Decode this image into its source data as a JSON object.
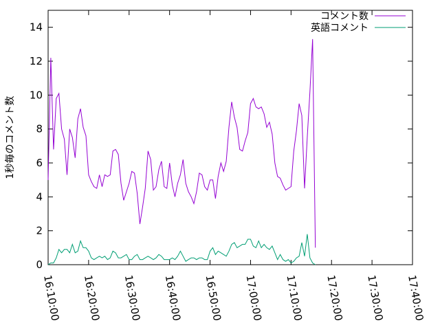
{
  "chart_data": {
    "type": "line",
    "title": "",
    "xlabel": "",
    "ylabel": "1秒毎のコメント数",
    "xlim": [
      "16:10:00",
      "17:40:00"
    ],
    "ylim": [
      0,
      15
    ],
    "x_ticks": [
      "16:10:00",
      "16:20:00",
      "16:30:00",
      "16:40:00",
      "16:50:00",
      "17:00:00",
      "17:10:00",
      "17:20:00",
      "17:30:00",
      "17:40:00"
    ],
    "y_ticks": [
      "0",
      "2",
      "4",
      "6",
      "8",
      "10",
      "12",
      "14"
    ],
    "grid": false,
    "legend_position": "top-right",
    "series": [
      {
        "name": "コメント数",
        "color": "#9400d3",
        "points": [
          [
            "16:10:00",
            5.0
          ],
          [
            "16:10:40",
            12.2
          ],
          [
            "16:11:20",
            6.8
          ],
          [
            "16:12:00",
            9.8
          ],
          [
            "16:12:40",
            10.1
          ],
          [
            "16:13:20",
            8.0
          ],
          [
            "16:14:00",
            7.4
          ],
          [
            "16:14:40",
            5.3
          ],
          [
            "16:15:20",
            8.0
          ],
          [
            "16:16:00",
            7.5
          ],
          [
            "16:16:40",
            6.3
          ],
          [
            "16:17:20",
            8.6
          ],
          [
            "16:18:00",
            9.2
          ],
          [
            "16:18:40",
            8.1
          ],
          [
            "16:19:20",
            7.6
          ],
          [
            "16:20:00",
            5.3
          ],
          [
            "16:20:40",
            4.9
          ],
          [
            "16:21:20",
            4.6
          ],
          [
            "16:22:00",
            4.5
          ],
          [
            "16:22:40",
            5.3
          ],
          [
            "16:23:20",
            4.6
          ],
          [
            "16:24:00",
            5.3
          ],
          [
            "16:24:40",
            5.2
          ],
          [
            "16:25:20",
            5.3
          ],
          [
            "16:26:00",
            6.7
          ],
          [
            "16:26:40",
            6.8
          ],
          [
            "16:27:20",
            6.5
          ],
          [
            "16:28:00",
            4.8
          ],
          [
            "16:28:40",
            3.8
          ],
          [
            "16:29:20",
            4.3
          ],
          [
            "16:30:00",
            4.8
          ],
          [
            "16:30:40",
            5.5
          ],
          [
            "16:31:20",
            5.4
          ],
          [
            "16:32:00",
            4.2
          ],
          [
            "16:32:40",
            2.4
          ],
          [
            "16:33:20",
            3.4
          ],
          [
            "16:34:00",
            4.5
          ],
          [
            "16:34:40",
            6.7
          ],
          [
            "16:35:20",
            6.2
          ],
          [
            "16:36:00",
            4.4
          ],
          [
            "16:36:40",
            4.6
          ],
          [
            "16:37:20",
            5.6
          ],
          [
            "16:38:00",
            6.1
          ],
          [
            "16:38:40",
            4.6
          ],
          [
            "16:39:20",
            4.5
          ],
          [
            "16:40:00",
            6.0
          ],
          [
            "16:40:40",
            4.7
          ],
          [
            "16:41:20",
            4.0
          ],
          [
            "16:42:00",
            4.8
          ],
          [
            "16:42:40",
            5.3
          ],
          [
            "16:43:20",
            6.2
          ],
          [
            "16:44:00",
            4.8
          ],
          [
            "16:44:40",
            4.3
          ],
          [
            "16:45:20",
            4.0
          ],
          [
            "16:46:00",
            3.6
          ],
          [
            "16:46:40",
            4.3
          ],
          [
            "16:47:20",
            5.4
          ],
          [
            "16:48:00",
            5.3
          ],
          [
            "16:48:40",
            4.6
          ],
          [
            "16:49:20",
            4.4
          ],
          [
            "16:50:00",
            5.0
          ],
          [
            "16:50:40",
            5.0
          ],
          [
            "16:51:20",
            3.9
          ],
          [
            "16:52:00",
            5.2
          ],
          [
            "16:52:40",
            6.0
          ],
          [
            "16:53:20",
            5.5
          ],
          [
            "16:54:00",
            6.1
          ],
          [
            "16:54:40",
            8.1
          ],
          [
            "16:55:20",
            9.6
          ],
          [
            "16:56:00",
            8.7
          ],
          [
            "16:56:40",
            8.1
          ],
          [
            "16:57:20",
            6.8
          ],
          [
            "16:58:00",
            6.7
          ],
          [
            "16:58:40",
            7.3
          ],
          [
            "16:59:20",
            7.8
          ],
          [
            "17:00:00",
            9.5
          ],
          [
            "17:00:40",
            9.8
          ],
          [
            "17:01:20",
            9.3
          ],
          [
            "17:02:00",
            9.2
          ],
          [
            "17:02:40",
            9.3
          ],
          [
            "17:03:20",
            8.9
          ],
          [
            "17:04:00",
            8.1
          ],
          [
            "17:04:40",
            8.4
          ],
          [
            "17:05:20",
            7.7
          ],
          [
            "17:06:00",
            6.0
          ],
          [
            "17:06:40",
            5.2
          ],
          [
            "17:07:20",
            5.1
          ],
          [
            "17:08:00",
            4.7
          ],
          [
            "17:08:40",
            4.4
          ],
          [
            "17:09:20",
            4.5
          ],
          [
            "17:10:00",
            4.6
          ],
          [
            "17:10:40",
            6.7
          ],
          [
            "17:11:20",
            7.9
          ],
          [
            "17:12:00",
            9.5
          ],
          [
            "17:12:40",
            8.8
          ],
          [
            "17:13:20",
            4.5
          ],
          [
            "17:14:00",
            7.5
          ],
          [
            "17:14:40",
            10.2
          ],
          [
            "17:15:20",
            13.3
          ],
          [
            "17:16:00",
            1.0
          ]
        ]
      },
      {
        "name": "英語コメント",
        "color": "#009e73",
        "points": [
          [
            "16:10:00",
            0.0
          ],
          [
            "16:10:40",
            0.1
          ],
          [
            "16:11:20",
            0.1
          ],
          [
            "16:12:00",
            0.4
          ],
          [
            "16:12:40",
            0.9
          ],
          [
            "16:13:20",
            0.7
          ],
          [
            "16:14:00",
            0.9
          ],
          [
            "16:14:40",
            0.9
          ],
          [
            "16:15:20",
            0.7
          ],
          [
            "16:16:00",
            1.2
          ],
          [
            "16:16:40",
            0.7
          ],
          [
            "16:17:20",
            0.8
          ],
          [
            "16:18:00",
            1.4
          ],
          [
            "16:18:40",
            1.0
          ],
          [
            "16:19:20",
            1.0
          ],
          [
            "16:20:00",
            0.8
          ],
          [
            "16:20:40",
            0.4
          ],
          [
            "16:21:20",
            0.3
          ],
          [
            "16:22:00",
            0.4
          ],
          [
            "16:22:40",
            0.5
          ],
          [
            "16:23:20",
            0.4
          ],
          [
            "16:24:00",
            0.5
          ],
          [
            "16:24:40",
            0.3
          ],
          [
            "16:25:20",
            0.4
          ],
          [
            "16:26:00",
            0.8
          ],
          [
            "16:26:40",
            0.7
          ],
          [
            "16:27:20",
            0.4
          ],
          [
            "16:28:00",
            0.4
          ],
          [
            "16:28:40",
            0.5
          ],
          [
            "16:29:20",
            0.6
          ],
          [
            "16:30:00",
            0.3
          ],
          [
            "16:30:40",
            0.3
          ],
          [
            "16:31:20",
            0.5
          ],
          [
            "16:32:00",
            0.6
          ],
          [
            "16:32:40",
            0.3
          ],
          [
            "16:33:20",
            0.3
          ],
          [
            "16:34:00",
            0.4
          ],
          [
            "16:34:40",
            0.5
          ],
          [
            "16:35:20",
            0.4
          ],
          [
            "16:36:00",
            0.3
          ],
          [
            "16:36:40",
            0.4
          ],
          [
            "16:37:20",
            0.6
          ],
          [
            "16:38:00",
            0.5
          ],
          [
            "16:38:40",
            0.3
          ],
          [
            "16:39:20",
            0.3
          ],
          [
            "16:40:00",
            0.3
          ],
          [
            "16:40:40",
            0.4
          ],
          [
            "16:41:20",
            0.3
          ],
          [
            "16:42:00",
            0.5
          ],
          [
            "16:42:40",
            0.8
          ],
          [
            "16:43:20",
            0.5
          ],
          [
            "16:44:00",
            0.2
          ],
          [
            "16:44:40",
            0.3
          ],
          [
            "16:45:20",
            0.4
          ],
          [
            "16:46:00",
            0.4
          ],
          [
            "16:46:40",
            0.3
          ],
          [
            "16:47:20",
            0.4
          ],
          [
            "16:48:00",
            0.4
          ],
          [
            "16:48:40",
            0.3
          ],
          [
            "16:49:20",
            0.3
          ],
          [
            "16:50:00",
            0.8
          ],
          [
            "16:50:40",
            1.0
          ],
          [
            "16:51:20",
            0.6
          ],
          [
            "16:52:00",
            0.8
          ],
          [
            "16:52:40",
            0.7
          ],
          [
            "16:53:20",
            0.6
          ],
          [
            "16:54:00",
            0.5
          ],
          [
            "16:54:40",
            0.8
          ],
          [
            "16:55:20",
            1.2
          ],
          [
            "16:56:00",
            1.3
          ],
          [
            "16:56:40",
            1.0
          ],
          [
            "16:57:20",
            1.1
          ],
          [
            "16:58:00",
            1.2
          ],
          [
            "16:58:40",
            1.2
          ],
          [
            "16:59:20",
            1.5
          ],
          [
            "17:00:00",
            1.5
          ],
          [
            "17:00:40",
            1.1
          ],
          [
            "17:01:20",
            1.0
          ],
          [
            "17:02:00",
            1.4
          ],
          [
            "17:02:40",
            1.0
          ],
          [
            "17:03:20",
            1.2
          ],
          [
            "17:04:00",
            1.0
          ],
          [
            "17:04:40",
            0.9
          ],
          [
            "17:05:20",
            1.1
          ],
          [
            "17:06:00",
            0.7
          ],
          [
            "17:06:40",
            0.3
          ],
          [
            "17:07:20",
            0.6
          ],
          [
            "17:08:00",
            0.3
          ],
          [
            "17:08:40",
            0.2
          ],
          [
            "17:09:20",
            0.3
          ],
          [
            "17:10:00",
            0.1
          ],
          [
            "17:10:40",
            0.2
          ],
          [
            "17:11:20",
            0.4
          ],
          [
            "17:12:00",
            0.5
          ],
          [
            "17:12:40",
            1.3
          ],
          [
            "17:13:20",
            0.5
          ],
          [
            "17:14:00",
            1.8
          ],
          [
            "17:14:40",
            0.4
          ],
          [
            "17:15:20",
            0.1
          ],
          [
            "17:16:00",
            0.0
          ]
        ]
      }
    ]
  }
}
